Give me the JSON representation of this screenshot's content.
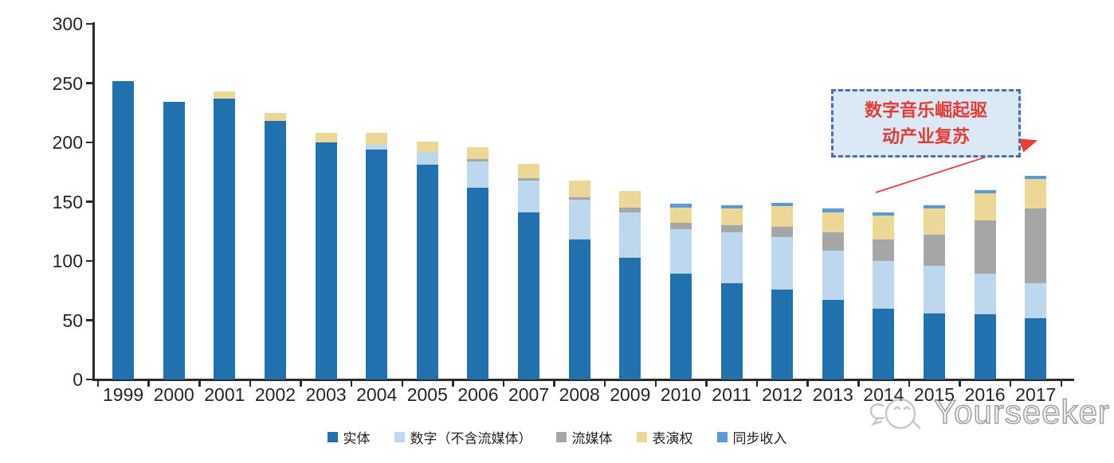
{
  "chart_data": {
    "type": "bar",
    "subtype": "stacked-vertical",
    "title": "",
    "xlabel": "",
    "ylabel": "",
    "ylim": [
      0,
      300
    ],
    "y_ticks": [
      0,
      50,
      100,
      150,
      200,
      250,
      300
    ],
    "grid": false,
    "legend_position": "bottom",
    "categories": [
      "1999",
      "2000",
      "2001",
      "2002",
      "2003",
      "2004",
      "2005",
      "2006",
      "2007",
      "2008",
      "2009",
      "2010",
      "2011",
      "2012",
      "2013",
      "2014",
      "2015",
      "2016",
      "2017"
    ],
    "series": [
      {
        "name": "实体",
        "color": "#2171AE",
        "values": [
          252,
          234,
          237,
          218,
          200,
          194,
          181,
          162,
          141,
          118,
          103,
          89,
          81,
          76,
          67,
          60,
          56,
          55,
          52
        ]
      },
      {
        "name": "数字（不含流媒体）",
        "color": "#BDD7EE",
        "values": [
          0,
          0,
          0,
          0,
          0,
          4,
          11,
          22,
          27,
          34,
          38,
          38,
          43,
          44,
          42,
          40,
          40,
          34,
          29
        ]
      },
      {
        "name": "流媒体",
        "color": "#A6A6A6",
        "values": [
          0,
          0,
          0,
          0,
          0,
          0,
          0,
          2,
          2,
          2,
          4,
          5,
          6,
          9,
          15,
          18,
          26,
          45,
          63
        ]
      },
      {
        "name": "表演权",
        "color": "#EBD896",
        "values": [
          0,
          0,
          6,
          7,
          8,
          10,
          9,
          10,
          12,
          14,
          14,
          13,
          14,
          17,
          17,
          20,
          22,
          23,
          25
        ]
      },
      {
        "name": "同步收入",
        "color": "#5B9BD5",
        "values": [
          0,
          0,
          0,
          0,
          0,
          0,
          0,
          0,
          0,
          0,
          0,
          3,
          3,
          3,
          3,
          3,
          3,
          3,
          3
        ]
      }
    ]
  },
  "annotation": {
    "text": "数字音乐崛起驱动产业复苏",
    "box_fill": "#dbe9f7",
    "box_border": "#4c6fae",
    "text_color": "#e43b33",
    "arrow_color": "#ee3b33"
  },
  "watermark": {
    "text": "Yourseeker"
  },
  "axis": {
    "color": "#2b2b2b",
    "label_color": "#262626"
  }
}
